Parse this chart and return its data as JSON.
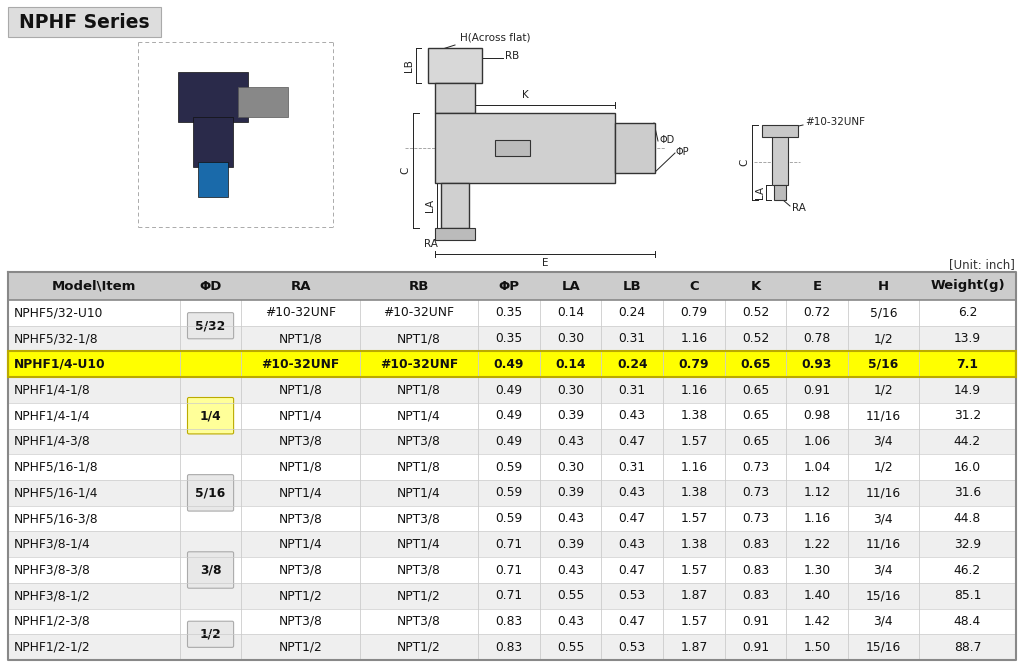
{
  "title": "NPHF Series",
  "unit_label": "[Unit: inch]",
  "headers": [
    "Model\\Item",
    "ΦD",
    "RA",
    "RB",
    "ΦP",
    "LA",
    "LB",
    "C",
    "K",
    "E",
    "H",
    "Weight(g)"
  ],
  "col_widths": [
    1.45,
    0.52,
    1.0,
    1.0,
    0.52,
    0.52,
    0.52,
    0.52,
    0.52,
    0.52,
    0.6,
    0.82
  ],
  "rows": [
    [
      "NPHF5/32-U10",
      "5/32",
      "#10-32UNF",
      "#10-32UNF",
      "0.35",
      "0.14",
      "0.24",
      "0.79",
      "0.52",
      "0.72",
      "5/16",
      "6.2"
    ],
    [
      "NPHF5/32-1/8",
      "5/32",
      "NPT1/8",
      "NPT1/8",
      "0.35",
      "0.30",
      "0.31",
      "1.16",
      "0.52",
      "0.78",
      "1/2",
      "13.9"
    ],
    [
      "NPHF1/4-U10",
      "",
      "#10-32UNF",
      "#10-32UNF",
      "0.49",
      "0.14",
      "0.24",
      "0.79",
      "0.65",
      "0.93",
      "5/16",
      "7.1"
    ],
    [
      "NPHF1/4-1/8",
      "1/4",
      "NPT1/8",
      "NPT1/8",
      "0.49",
      "0.30",
      "0.31",
      "1.16",
      "0.65",
      "0.91",
      "1/2",
      "14.9"
    ],
    [
      "NPHF1/4-1/4",
      "1/4",
      "NPT1/4",
      "NPT1/4",
      "0.49",
      "0.39",
      "0.43",
      "1.38",
      "0.65",
      "0.98",
      "11/16",
      "31.2"
    ],
    [
      "NPHF1/4-3/8",
      "",
      "NPT3/8",
      "NPT3/8",
      "0.49",
      "0.43",
      "0.47",
      "1.57",
      "0.65",
      "1.06",
      "3/4",
      "44.2"
    ],
    [
      "NPHF5/16-1/8",
      "",
      "NPT1/8",
      "NPT1/8",
      "0.59",
      "0.30",
      "0.31",
      "1.16",
      "0.73",
      "1.04",
      "1/2",
      "16.0"
    ],
    [
      "NPHF5/16-1/4",
      "5/16",
      "NPT1/4",
      "NPT1/4",
      "0.59",
      "0.39",
      "0.43",
      "1.38",
      "0.73",
      "1.12",
      "11/16",
      "31.6"
    ],
    [
      "NPHF5/16-3/8",
      "",
      "NPT3/8",
      "NPT3/8",
      "0.59",
      "0.43",
      "0.47",
      "1.57",
      "0.73",
      "1.16",
      "3/4",
      "44.8"
    ],
    [
      "NPHF3/8-1/4",
      "",
      "NPT1/4",
      "NPT1/4",
      "0.71",
      "0.39",
      "0.43",
      "1.38",
      "0.83",
      "1.22",
      "11/16",
      "32.9"
    ],
    [
      "NPHF3/8-3/8",
      "3/8",
      "NPT3/8",
      "NPT3/8",
      "0.71",
      "0.43",
      "0.47",
      "1.57",
      "0.83",
      "1.30",
      "3/4",
      "46.2"
    ],
    [
      "NPHF3/8-1/2",
      "",
      "NPT1/2",
      "NPT1/2",
      "0.71",
      "0.55",
      "0.53",
      "1.87",
      "0.83",
      "1.40",
      "15/16",
      "85.1"
    ],
    [
      "NPHF1/2-3/8",
      "1/2",
      "NPT3/8",
      "NPT3/8",
      "0.83",
      "0.43",
      "0.47",
      "1.57",
      "0.91",
      "1.42",
      "3/4",
      "48.4"
    ],
    [
      "NPHF1/2-1/2",
      "1/2",
      "NPT1/2",
      "NPT1/2",
      "0.83",
      "0.55",
      "0.53",
      "1.87",
      "0.91",
      "1.50",
      "15/16",
      "88.7"
    ]
  ],
  "merge_groups": [
    {
      "rows": [
        0,
        1
      ],
      "val": "5/32"
    },
    {
      "rows": [
        3,
        4,
        5
      ],
      "val": "1/4"
    },
    {
      "rows": [
        6,
        7,
        8
      ],
      "val": "5/16"
    },
    {
      "rows": [
        9,
        10,
        11
      ],
      "val": "3/8"
    },
    {
      "rows": [
        12,
        13
      ],
      "val": "1/2"
    }
  ],
  "highlight_row": 2,
  "highlight_color": "#FFFF00",
  "header_bg": "#CCCCCC",
  "title_bg": "#DDDDDD",
  "row_alt_bg": "#EFEFEF",
  "row_normal_bg": "#FFFFFF",
  "border_outer": "#888888",
  "border_inner": "#CCCCCC",
  "font_size_header": 9.5,
  "font_size_data": 8.8,
  "font_size_title": 13.5,
  "font_size_diagram": 7.5
}
